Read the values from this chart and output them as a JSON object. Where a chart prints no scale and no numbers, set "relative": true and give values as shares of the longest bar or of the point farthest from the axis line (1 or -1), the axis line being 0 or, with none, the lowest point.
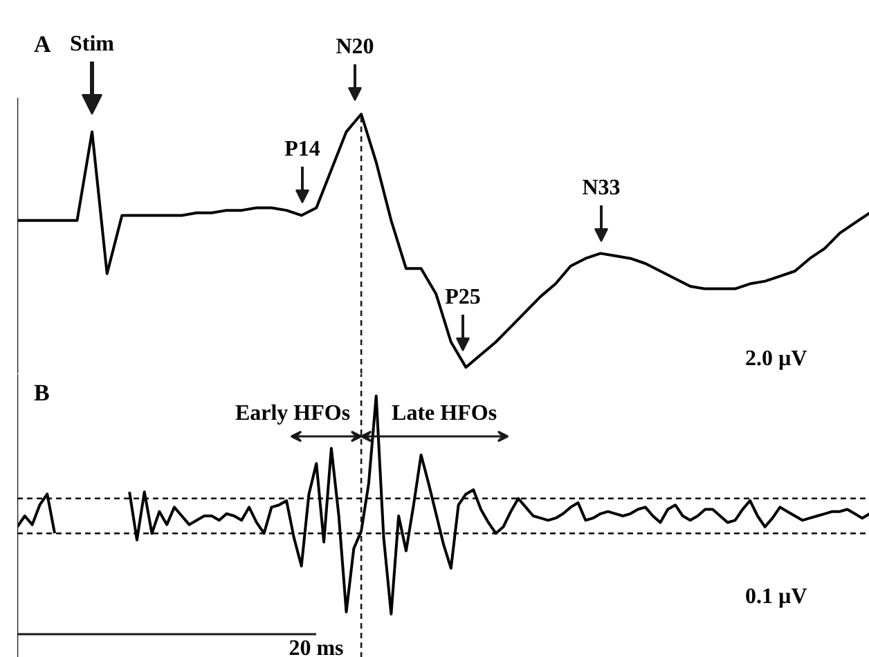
{
  "chart_data": [
    {
      "type": "line",
      "title": "A",
      "relative": true,
      "tick_labels": false,
      "grid": false,
      "categories": [
        null,
        null,
        null,
        null,
        null,
        null,
        null,
        null,
        null,
        null,
        null,
        null,
        null,
        null,
        null,
        null,
        null,
        null,
        null,
        null,
        null,
        null,
        null,
        null,
        null,
        null,
        null,
        null,
        null,
        null,
        null,
        null,
        null,
        null,
        null,
        null,
        null,
        null,
        null,
        null,
        null,
        null,
        null,
        null,
        null,
        null,
        null,
        null,
        null,
        null,
        null,
        null,
        null,
        null,
        null,
        null,
        null,
        null
      ],
      "series": [
        {
          "color": "#000000",
          "values": [
            0.58,
            0.58,
            0.58,
            0.58,
            0.58,
            0.93,
            0.37,
            0.6,
            0.6,
            0.6,
            0.6,
            0.6,
            0.61,
            0.61,
            0.62,
            0.62,
            0.63,
            0.63,
            0.62,
            0.6,
            0.63,
            0.78,
            0.93,
            1.0,
            0.81,
            0.58,
            0.39,
            0.39,
            0.29,
            0.1,
            0,
            0.05,
            0.1,
            0.16,
            0.22,
            0.28,
            0.33,
            0.4,
            0.43,
            0.45,
            0.44,
            0.43,
            0.41,
            0.38,
            0.35,
            0.32,
            0.31,
            0.31,
            0.31,
            0.33,
            0.34,
            0.36,
            0.38,
            0.43,
            0.47,
            0.53,
            0.57,
            0.61
          ]
        }
      ],
      "annotations": [
        "Stim",
        "P14",
        "N20",
        "P25",
        "N33",
        "2.0 µV"
      ]
    },
    {
      "type": "line",
      "title": "B",
      "relative": true,
      "tick_labels": false,
      "grid": false,
      "categories": [
        null,
        null,
        null,
        null,
        null,
        null,
        null,
        null,
        null,
        null,
        null,
        null,
        null,
        null,
        null,
        null,
        null,
        null,
        null,
        null,
        null,
        null,
        null,
        null,
        null,
        null,
        null,
        null,
        null,
        null,
        null,
        null,
        null,
        null,
        null,
        null,
        null,
        null,
        null,
        null,
        null,
        null,
        null,
        null,
        null,
        null,
        null,
        null,
        null,
        null,
        null,
        null,
        null,
        null,
        null,
        null,
        null,
        null,
        null,
        null,
        null,
        null,
        null,
        null,
        null,
        null,
        null,
        null,
        null,
        null,
        null,
        null,
        null,
        null,
        null,
        null,
        null,
        null,
        null,
        null,
        null,
        null,
        null,
        null,
        null,
        null,
        null,
        null,
        null,
        null,
        null,
        null,
        null,
        null,
        null,
        null,
        null,
        null,
        null,
        null,
        null,
        null,
        null,
        null,
        null,
        null,
        null,
        null,
        null,
        null,
        null,
        null,
        null,
        null,
        null
      ],
      "series": [
        {
          "color": "#000000",
          "values": [
            0.4,
            0.45,
            0.41,
            0.5,
            0.55,
            0.37,
            null,
            null,
            null,
            null,
            null,
            null,
            null,
            null,
            null,
            0.56,
            0.34,
            0.56,
            0.37,
            0.47,
            0.41,
            0.49,
            0.45,
            0.41,
            0.43,
            0.45,
            0.45,
            0.43,
            0.46,
            0.45,
            0.43,
            0.49,
            0.42,
            0.37,
            0.49,
            0.5,
            0.52,
            0.35,
            0.22,
            0.55,
            0.69,
            0.33,
            0.76,
            0.45,
            0.01,
            0.3,
            0.38,
            0.6,
            1.0,
            0.35,
            0,
            0.45,
            0.29,
            0.5,
            0.73,
            0.6,
            0.46,
            0.32,
            0.21,
            0.5,
            0.55,
            0.57,
            0.48,
            0.42,
            0.37,
            0.4,
            0.47,
            0.53,
            0.49,
            0.45,
            0.44,
            0.43,
            0.44,
            0.46,
            0.49,
            0.51,
            0.43,
            0.44,
            0.46,
            0.47,
            0.46,
            0.45,
            0.46,
            0.48,
            0.49,
            0.45,
            0.42,
            0.48,
            0.5,
            0.45,
            0.43,
            0.45,
            0.48,
            0.48,
            0.45,
            0.42,
            0.43,
            0.48,
            0.52,
            0.45,
            0.4,
            0.44,
            0.49,
            0.47,
            0.45,
            0.43,
            0.44,
            0.45,
            0.46,
            0.47,
            0.47,
            0.48,
            0.46,
            0.44,
            0.46
          ]
        }
      ],
      "ref_lines": [
        {
          "axis": "y",
          "value": 0.53,
          "line_style": "dashed"
        },
        {
          "axis": "y",
          "value": 0.37,
          "line_style": "dashed"
        }
      ],
      "annotations": [
        "Early HFOs",
        "Late HFOs",
        "0.1 µV",
        "20 ms"
      ]
    }
  ]
}
